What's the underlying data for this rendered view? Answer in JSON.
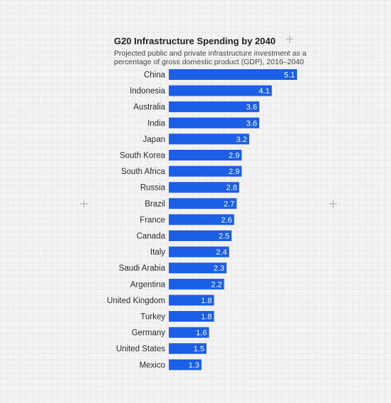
{
  "chart_data": {
    "type": "bar",
    "orientation": "horizontal",
    "title": "G20 Infrastructure Spending by 2040",
    "subtitle": "Projected public and private infrastructure investment as a percentage of gross domestic product (GDP), 2016–2040",
    "categories": [
      "China",
      "Indonesia",
      "Australia",
      "India",
      "Japan",
      "South Korea",
      "South Africa",
      "Russia",
      "Brazil",
      "France",
      "Canada",
      "Italy",
      "Saudi Arabia",
      "Argentina",
      "United Kingdom",
      "Turkey",
      "Germany",
      "United States",
      "Mexico"
    ],
    "values": [
      5.1,
      4.1,
      3.6,
      3.6,
      3.2,
      2.9,
      2.9,
      2.8,
      2.7,
      2.6,
      2.5,
      2.4,
      2.3,
      2.2,
      1.8,
      1.8,
      1.6,
      1.5,
      1.3
    ],
    "value_labels": [
      "5.1",
      "4.1",
      "3.6",
      "3.6",
      "3.2",
      "2.9",
      "2.9",
      "2.8",
      "2.7",
      "2.6",
      "2.5",
      "2.4",
      "2.3",
      "2.2",
      "1.8",
      "1.8",
      "1.6",
      "1.5",
      "1.3"
    ],
    "xlim": [
      0,
      5.1
    ],
    "bar_color": "#1a5fe6",
    "grid": false,
    "legend": "none"
  }
}
